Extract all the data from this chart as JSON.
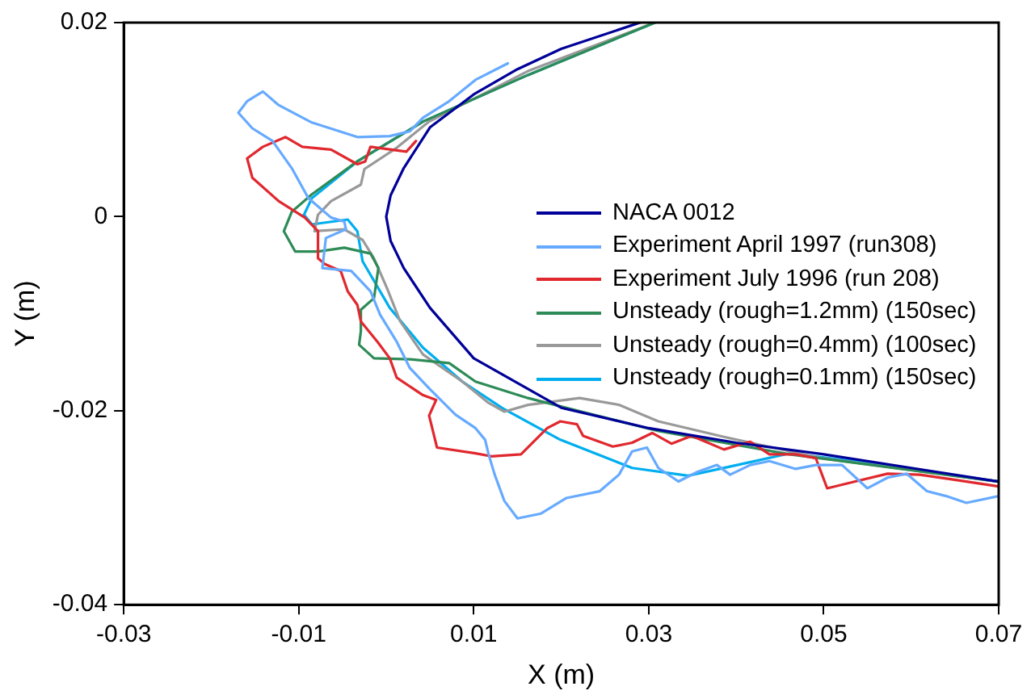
{
  "chart_data": {
    "type": "line",
    "xlabel": "X (m)",
    "ylabel": "Y (m)",
    "xlim": [
      -0.03,
      0.07
    ],
    "xticks": [
      -0.03,
      -0.01,
      0.01,
      0.03,
      0.05,
      0.07
    ],
    "ylim": [
      -0.04,
      0.02
    ],
    "yticks": [
      -0.04,
      -0.02,
      0,
      0.02
    ],
    "grid": false,
    "legend": "right",
    "marker": "none",
    "line_style": "solid",
    "series": [
      {
        "name": "NACA 0012",
        "color": "#000099",
        "x": [
          0.029,
          0.02,
          0.015,
          0.01,
          0.005,
          0.002,
          0.0005,
          0,
          0.0005,
          0.002,
          0.005,
          0.01,
          0.02,
          0.03,
          0.04,
          0.05,
          0.06,
          0.07
        ],
        "values": [
          0.02,
          0.0173,
          0.0152,
          0.0126,
          0.0092,
          0.005,
          0.0022,
          0,
          -0.0025,
          -0.0053,
          -0.0094,
          -0.0146,
          -0.0197,
          -0.0218,
          -0.0233,
          -0.0245,
          -0.0259,
          -0.0273
        ]
      },
      {
        "name": "Experiment April 1997 (run308)",
        "color": "#66aaff",
        "x": [
          0.0139,
          0.0102,
          0.0072,
          0.0042,
          0.0027,
          0.0004,
          -0.0033,
          -0.0085,
          -0.0123,
          -0.0141,
          -0.0159,
          -0.0169,
          -0.0153,
          -0.013,
          -0.0108,
          -0.0089,
          -0.0063,
          -0.0048,
          -0.0046,
          -0.0069,
          -0.0073,
          -0.004,
          -0.0018,
          -0.0007,
          0.0012,
          0.0027,
          0.0049,
          0.0079,
          0.0102,
          0.0113,
          0.0117,
          0.0124,
          0.0135,
          0.015,
          0.0177,
          0.0206,
          0.0244,
          0.0266,
          0.0281,
          0.0298,
          0.0311,
          0.0334,
          0.0356,
          0.0378,
          0.0393,
          0.0416,
          0.0438,
          0.0468,
          0.0491,
          0.0521,
          0.055,
          0.0573,
          0.0595,
          0.0618,
          0.064,
          0.0663,
          0.07
        ],
        "values": [
          0.0158,
          0.0141,
          0.0119,
          0.0102,
          0.0088,
          0.0083,
          0.0082,
          0.0097,
          0.0115,
          0.0129,
          0.0119,
          0.0107,
          0.0091,
          0.0078,
          0.005,
          0.0019,
          -0.0001,
          -0.0005,
          -0.0013,
          -0.0022,
          -0.0053,
          -0.0056,
          -0.0077,
          -0.0101,
          -0.0129,
          -0.0156,
          -0.0177,
          -0.0204,
          -0.0218,
          -0.023,
          -0.0245,
          -0.0266,
          -0.0293,
          -0.0311,
          -0.0306,
          -0.029,
          -0.0283,
          -0.0266,
          -0.0242,
          -0.0238,
          -0.0259,
          -0.0273,
          -0.0263,
          -0.0256,
          -0.0266,
          -0.0256,
          -0.0252,
          -0.026,
          -0.0256,
          -0.0256,
          -0.028,
          -0.0269,
          -0.0265,
          -0.0283,
          -0.0288,
          -0.0295,
          -0.0288
        ]
      },
      {
        "name": "Experiment July 1996 (run 208)",
        "color": "#e0282e",
        "x": [
          0.0034,
          0.0023,
          -0.0018,
          -0.0024,
          -0.0033,
          -0.0063,
          -0.0096,
          -0.0115,
          -0.0141,
          -0.0159,
          -0.0153,
          -0.0123,
          -0.0093,
          -0.0078,
          -0.0078,
          -0.007,
          -0.0052,
          -0.0044,
          -0.0033,
          -0.0029,
          -0.001,
          0.0004,
          0.0012,
          0.0042,
          0.0057,
          0.0049,
          0.0058,
          0.0102,
          0.012,
          0.0154,
          0.0184,
          0.0199,
          0.0218,
          0.0225,
          0.0259,
          0.0281,
          0.0304,
          0.0326,
          0.0349,
          0.0386,
          0.0416,
          0.0438,
          0.0468,
          0.0491,
          0.0504,
          0.0536,
          0.0573,
          0.061,
          0.0648,
          0.07
        ],
        "values": [
          0.0078,
          0.0067,
          0.0072,
          0.0057,
          0.0054,
          0.0069,
          0.0072,
          0.0082,
          0.0072,
          0.006,
          0.004,
          0.0016,
          -0.0001,
          -0.0015,
          -0.0043,
          -0.0049,
          -0.0056,
          -0.0077,
          -0.0091,
          -0.0108,
          -0.0129,
          -0.0146,
          -0.0166,
          -0.0184,
          -0.0189,
          -0.0205,
          -0.0238,
          -0.0244,
          -0.0247,
          -0.0245,
          -0.0218,
          -0.0211,
          -0.0214,
          -0.0226,
          -0.0237,
          -0.0233,
          -0.0223,
          -0.0234,
          -0.0226,
          -0.024,
          -0.0232,
          -0.0245,
          -0.0245,
          -0.0249,
          -0.028,
          -0.0273,
          -0.0265,
          -0.0266,
          -0.0271,
          -0.0278
        ]
      },
      {
        "name": "Unsteady (rough=1.2mm) (150sec)",
        "color": "#2e8b57",
        "x": [
          0.0307,
          0.0162,
          0.0042,
          -0.0033,
          -0.0085,
          -0.0108,
          -0.0117,
          -0.0104,
          -0.0078,
          -0.0048,
          -0.0018,
          -0.0009,
          -0.0014,
          -0.0029,
          -0.0029,
          -0.0031,
          -0.0014,
          0.0027,
          0.0072,
          0.0102,
          0.0162,
          0.0236,
          0.0311,
          0.0461,
          0.07
        ],
        "values": [
          0.02,
          0.0146,
          0.0098,
          0.0057,
          0.0023,
          0.0005,
          -0.0015,
          -0.0036,
          -0.0036,
          -0.0032,
          -0.0038,
          -0.0053,
          -0.0084,
          -0.0096,
          -0.0118,
          -0.0132,
          -0.0146,
          -0.0147,
          -0.0151,
          -0.017,
          -0.0187,
          -0.0204,
          -0.0221,
          -0.0245,
          -0.0273
        ]
      },
      {
        "name": "Unsteady (rough=0.4mm) (100sec)",
        "color": "#999999",
        "x": [
          0.0307,
          0.0162,
          0.0049,
          0.0012,
          -0.0025,
          -0.0029,
          -0.0063,
          -0.0078,
          -0.0082,
          -0.0048,
          -0.0027,
          -0.0014,
          0.0001,
          0.0016,
          0.0042,
          0.0087,
          0.0117,
          0.0135,
          0.0162,
          0.0221,
          0.0266,
          0.0311,
          0.0386,
          0.0498,
          0.07
        ],
        "values": [
          0.02,
          0.015,
          0.0098,
          0.0071,
          0.0049,
          0.0033,
          0.0016,
          0.0002,
          -0.0015,
          -0.0013,
          -0.0024,
          -0.0043,
          -0.0074,
          -0.0108,
          -0.0142,
          -0.017,
          -0.0192,
          -0.0201,
          -0.0194,
          -0.0187,
          -0.0194,
          -0.0211,
          -0.0227,
          -0.0249,
          -0.0273
        ]
      },
      {
        "name": "Unsteady (rough=0.1mm) (150sec)",
        "color": "#00aeef",
        "x": [
          0.0307,
          0.0162,
          0.0042,
          -0.0033,
          -0.0085,
          -0.0094,
          -0.0085,
          -0.0044,
          -0.0033,
          -0.0027,
          0.0004,
          0.0042,
          0.0087,
          0.0132,
          0.0199,
          0.0281,
          0.0345,
          0.0401,
          0.0461,
          0.0536,
          0.07
        ],
        "values": [
          0.02,
          0.0146,
          0.0098,
          0.0057,
          0.0019,
          0.0002,
          -0.0008,
          -0.0003,
          -0.0015,
          -0.0046,
          -0.0094,
          -0.0135,
          -0.017,
          -0.0197,
          -0.023,
          -0.0259,
          -0.0267,
          -0.0256,
          -0.0244,
          -0.0252,
          -0.0273
        ]
      }
    ]
  }
}
